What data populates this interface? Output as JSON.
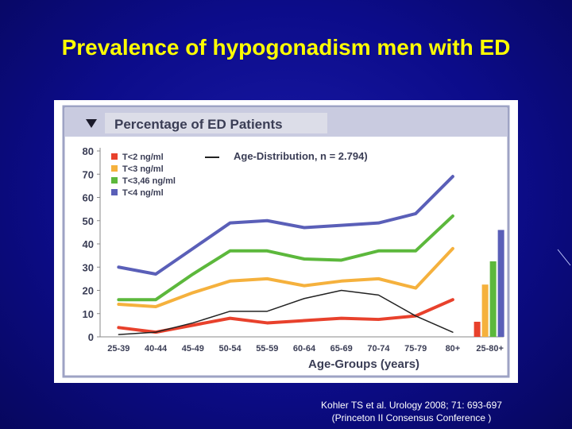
{
  "slide": {
    "title": "Prevalence of hypogonadism men with ED",
    "citation_line1": "Kohler TS et al. Urology 2008; 71: 693-697",
    "citation_line2": "(Princeton II Consensus Conference )"
  },
  "chart_data": {
    "type": "line",
    "title": "Percentage of ED Patients",
    "subtitle": "Age-Distribution, n = 2.794)",
    "xlabel": "Age-Groups (years)",
    "ylabel": "",
    "ylim": [
      0,
      80
    ],
    "yticks": [
      0,
      10,
      20,
      30,
      40,
      50,
      60,
      70,
      80
    ],
    "grid": false,
    "legend_position": "top-left",
    "categories": [
      "25-39",
      "40-44",
      "45-49",
      "50-54",
      "55-59",
      "60-64",
      "65-69",
      "70-74",
      "75-79",
      "80+"
    ],
    "series": [
      {
        "name": "T<2 ng/ml",
        "color": "#e8412c",
        "values": [
          4,
          2,
          5,
          8,
          6,
          7,
          8,
          7.5,
          9,
          16
        ]
      },
      {
        "name": "T<3 ng/ml",
        "color": "#f5b13d",
        "values": [
          14,
          13,
          19,
          24,
          25,
          22,
          24,
          25,
          21,
          38
        ]
      },
      {
        "name": "T<3,46 ng/ml",
        "color": "#5cb83c",
        "values": [
          16,
          16,
          27,
          37,
          37,
          33.5,
          33,
          37,
          37,
          52
        ]
      },
      {
        "name": "T<4 ng/ml",
        "color": "#5a5fb8",
        "values": [
          30,
          27,
          38,
          49,
          50,
          47,
          48,
          49,
          53,
          69
        ]
      },
      {
        "name": "",
        "color": "#222222",
        "values": [
          1,
          2,
          6,
          11,
          11,
          16.5,
          20,
          18,
          9,
          2
        ]
      }
    ],
    "summary_bars": {
      "category": "25-80+",
      "values": [
        6.5,
        22.5,
        32.5,
        46
      ],
      "colors": [
        "#e8412c",
        "#f5b13d",
        "#5cb83c",
        "#5a5fb8"
      ]
    }
  }
}
